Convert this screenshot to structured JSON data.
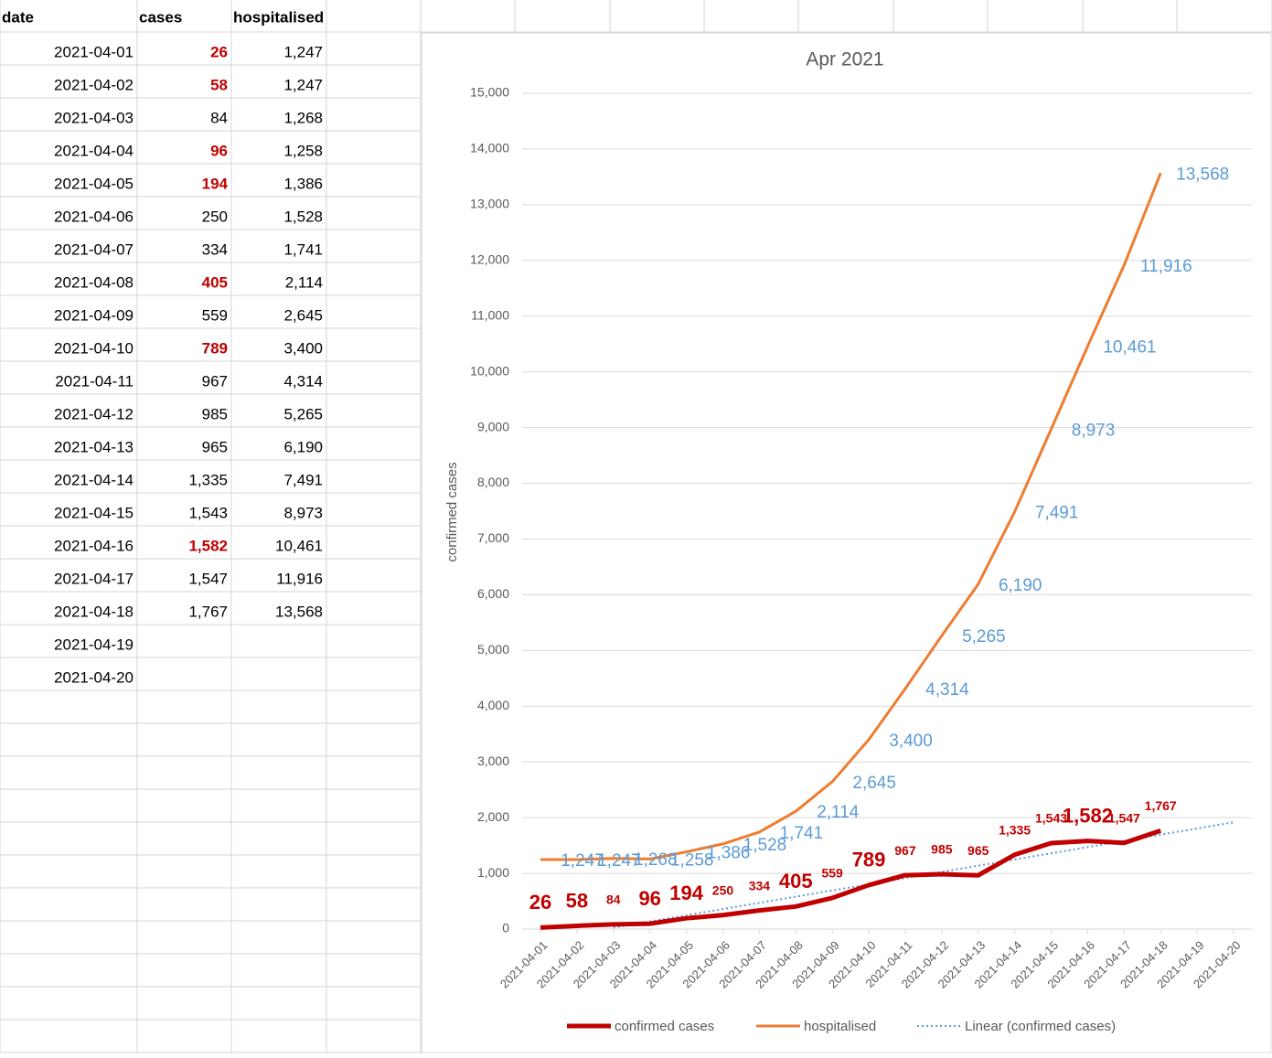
{
  "table": {
    "columns": [
      "date",
      "cases",
      "hospitalised"
    ],
    "rows": [
      [
        "2021-04-01",
        "26",
        "1,247"
      ],
      [
        "2021-04-02",
        "58",
        "1,247"
      ],
      [
        "2021-04-03",
        "84",
        "1,268"
      ],
      [
        "2021-04-04",
        "96",
        "1,258"
      ],
      [
        "2021-04-05",
        "194",
        "1,386"
      ],
      [
        "2021-04-06",
        "250",
        "1,528"
      ],
      [
        "2021-04-07",
        "334",
        "1,741"
      ],
      [
        "2021-04-08",
        "405",
        "2,114"
      ],
      [
        "2021-04-09",
        "559",
        "2,645"
      ],
      [
        "2021-04-10",
        "789",
        "3,400"
      ],
      [
        "2021-04-11",
        "967",
        "4,314"
      ],
      [
        "2021-04-12",
        "985",
        "5,265"
      ],
      [
        "2021-04-13",
        "965",
        "6,190"
      ],
      [
        "2021-04-14",
        "1,335",
        "7,491"
      ],
      [
        "2021-04-15",
        "1,543",
        "8,973"
      ],
      [
        "2021-04-16",
        "1,582",
        "10,461"
      ],
      [
        "2021-04-17",
        "1,547",
        "11,916"
      ],
      [
        "2021-04-18",
        "1,767",
        "13,568"
      ],
      [
        "2021-04-19"
      ],
      [
        "2021-04-20"
      ]
    ],
    "highlight_rows": [
      0,
      1,
      3,
      4,
      7,
      9,
      15
    ],
    "highlight_color": "#c00000"
  },
  "chart_data": {
    "type": "line",
    "title": "Apr 2021",
    "y_label": "confirmed cases",
    "categories": [
      "2021-04-01",
      "2021-04-02",
      "2021-04-03",
      "2021-04-04",
      "2021-04-05",
      "2021-04-06",
      "2021-04-07",
      "2021-04-08",
      "2021-04-09",
      "2021-04-10",
      "2021-04-11",
      "2021-04-12",
      "2021-04-13",
      "2021-04-14",
      "2021-04-15",
      "2021-04-16",
      "2021-04-17",
      "2021-04-18",
      "2021-04-19",
      "2021-04-20"
    ],
    "series": [
      {
        "name": "confirmed cases",
        "color": "#c00000",
        "width": 5,
        "values": [
          26,
          58,
          84,
          96,
          194,
          250,
          334,
          405,
          559,
          789,
          967,
          985,
          965,
          1335,
          1543,
          1582,
          1547,
          1767,
          null,
          null
        ],
        "value_labels": [
          "26",
          "58",
          "84",
          "96",
          "194",
          "250",
          "334",
          "405",
          "559",
          "789",
          "967",
          "985",
          "965",
          "1,335",
          "1,543",
          "1,582",
          "1,547",
          "1,767",
          null,
          null
        ],
        "large_labels": [
          0,
          1,
          3,
          4,
          7,
          9,
          15
        ]
      },
      {
        "name": "hospitalised",
        "color": "#ed7d31",
        "width": 3,
        "label_color": "#5b9bd5",
        "values": [
          1247,
          1247,
          1268,
          1258,
          1386,
          1528,
          1741,
          2114,
          2645,
          3400,
          4314,
          5265,
          6190,
          7491,
          8973,
          10461,
          11916,
          13568,
          null,
          null
        ],
        "value_labels": [
          "1,247",
          "1,247",
          "1,268",
          "1,258",
          "1,386",
          "1,528",
          "1,741",
          "2,114",
          "2,645",
          "3,400",
          "4,314",
          "5,265",
          "6,190",
          "7,491",
          "8,973",
          "10,461",
          "11,916",
          "13,568",
          null,
          null
        ]
      },
      {
        "name": "Linear (confirmed cases)",
        "color": "#5b9bd5",
        "width": 2,
        "dotted": true,
        "values": [
          null,
          null,
          26,
          137,
          248,
          359,
          470,
          582,
          693,
          804,
          915,
          1026,
          1138,
          1249,
          1360,
          1471,
          1582,
          1694,
          1805,
          1916
        ]
      }
    ],
    "ylim": [
      0,
      15000
    ],
    "yticks": [
      0,
      {
        "value": 1000,
        "label": "1,000"
      },
      {
        "value": 2000,
        "label": "2,000"
      },
      {
        "value": 3000,
        "label": "3,000"
      },
      {
        "value": 4000,
        "label": "4,000"
      },
      {
        "value": 5000,
        "label": "5,000"
      },
      {
        "value": 6000,
        "label": "6,000"
      },
      {
        "value": 7000,
        "label": "7,000"
      },
      {
        "value": 8000,
        "label": "8,000"
      },
      {
        "value": 9000,
        "label": "9,000"
      },
      {
        "value": 10000,
        "label": "10,000"
      },
      {
        "value": 11000,
        "label": "11,000"
      },
      {
        "value": 12000,
        "label": "12,000"
      },
      {
        "value": 13000,
        "label": "13,000"
      },
      {
        "value": 14000,
        "label": "14,000"
      },
      {
        "value": 15000,
        "label": "15,000"
      }
    ],
    "grid": true,
    "legend": "bottom"
  }
}
